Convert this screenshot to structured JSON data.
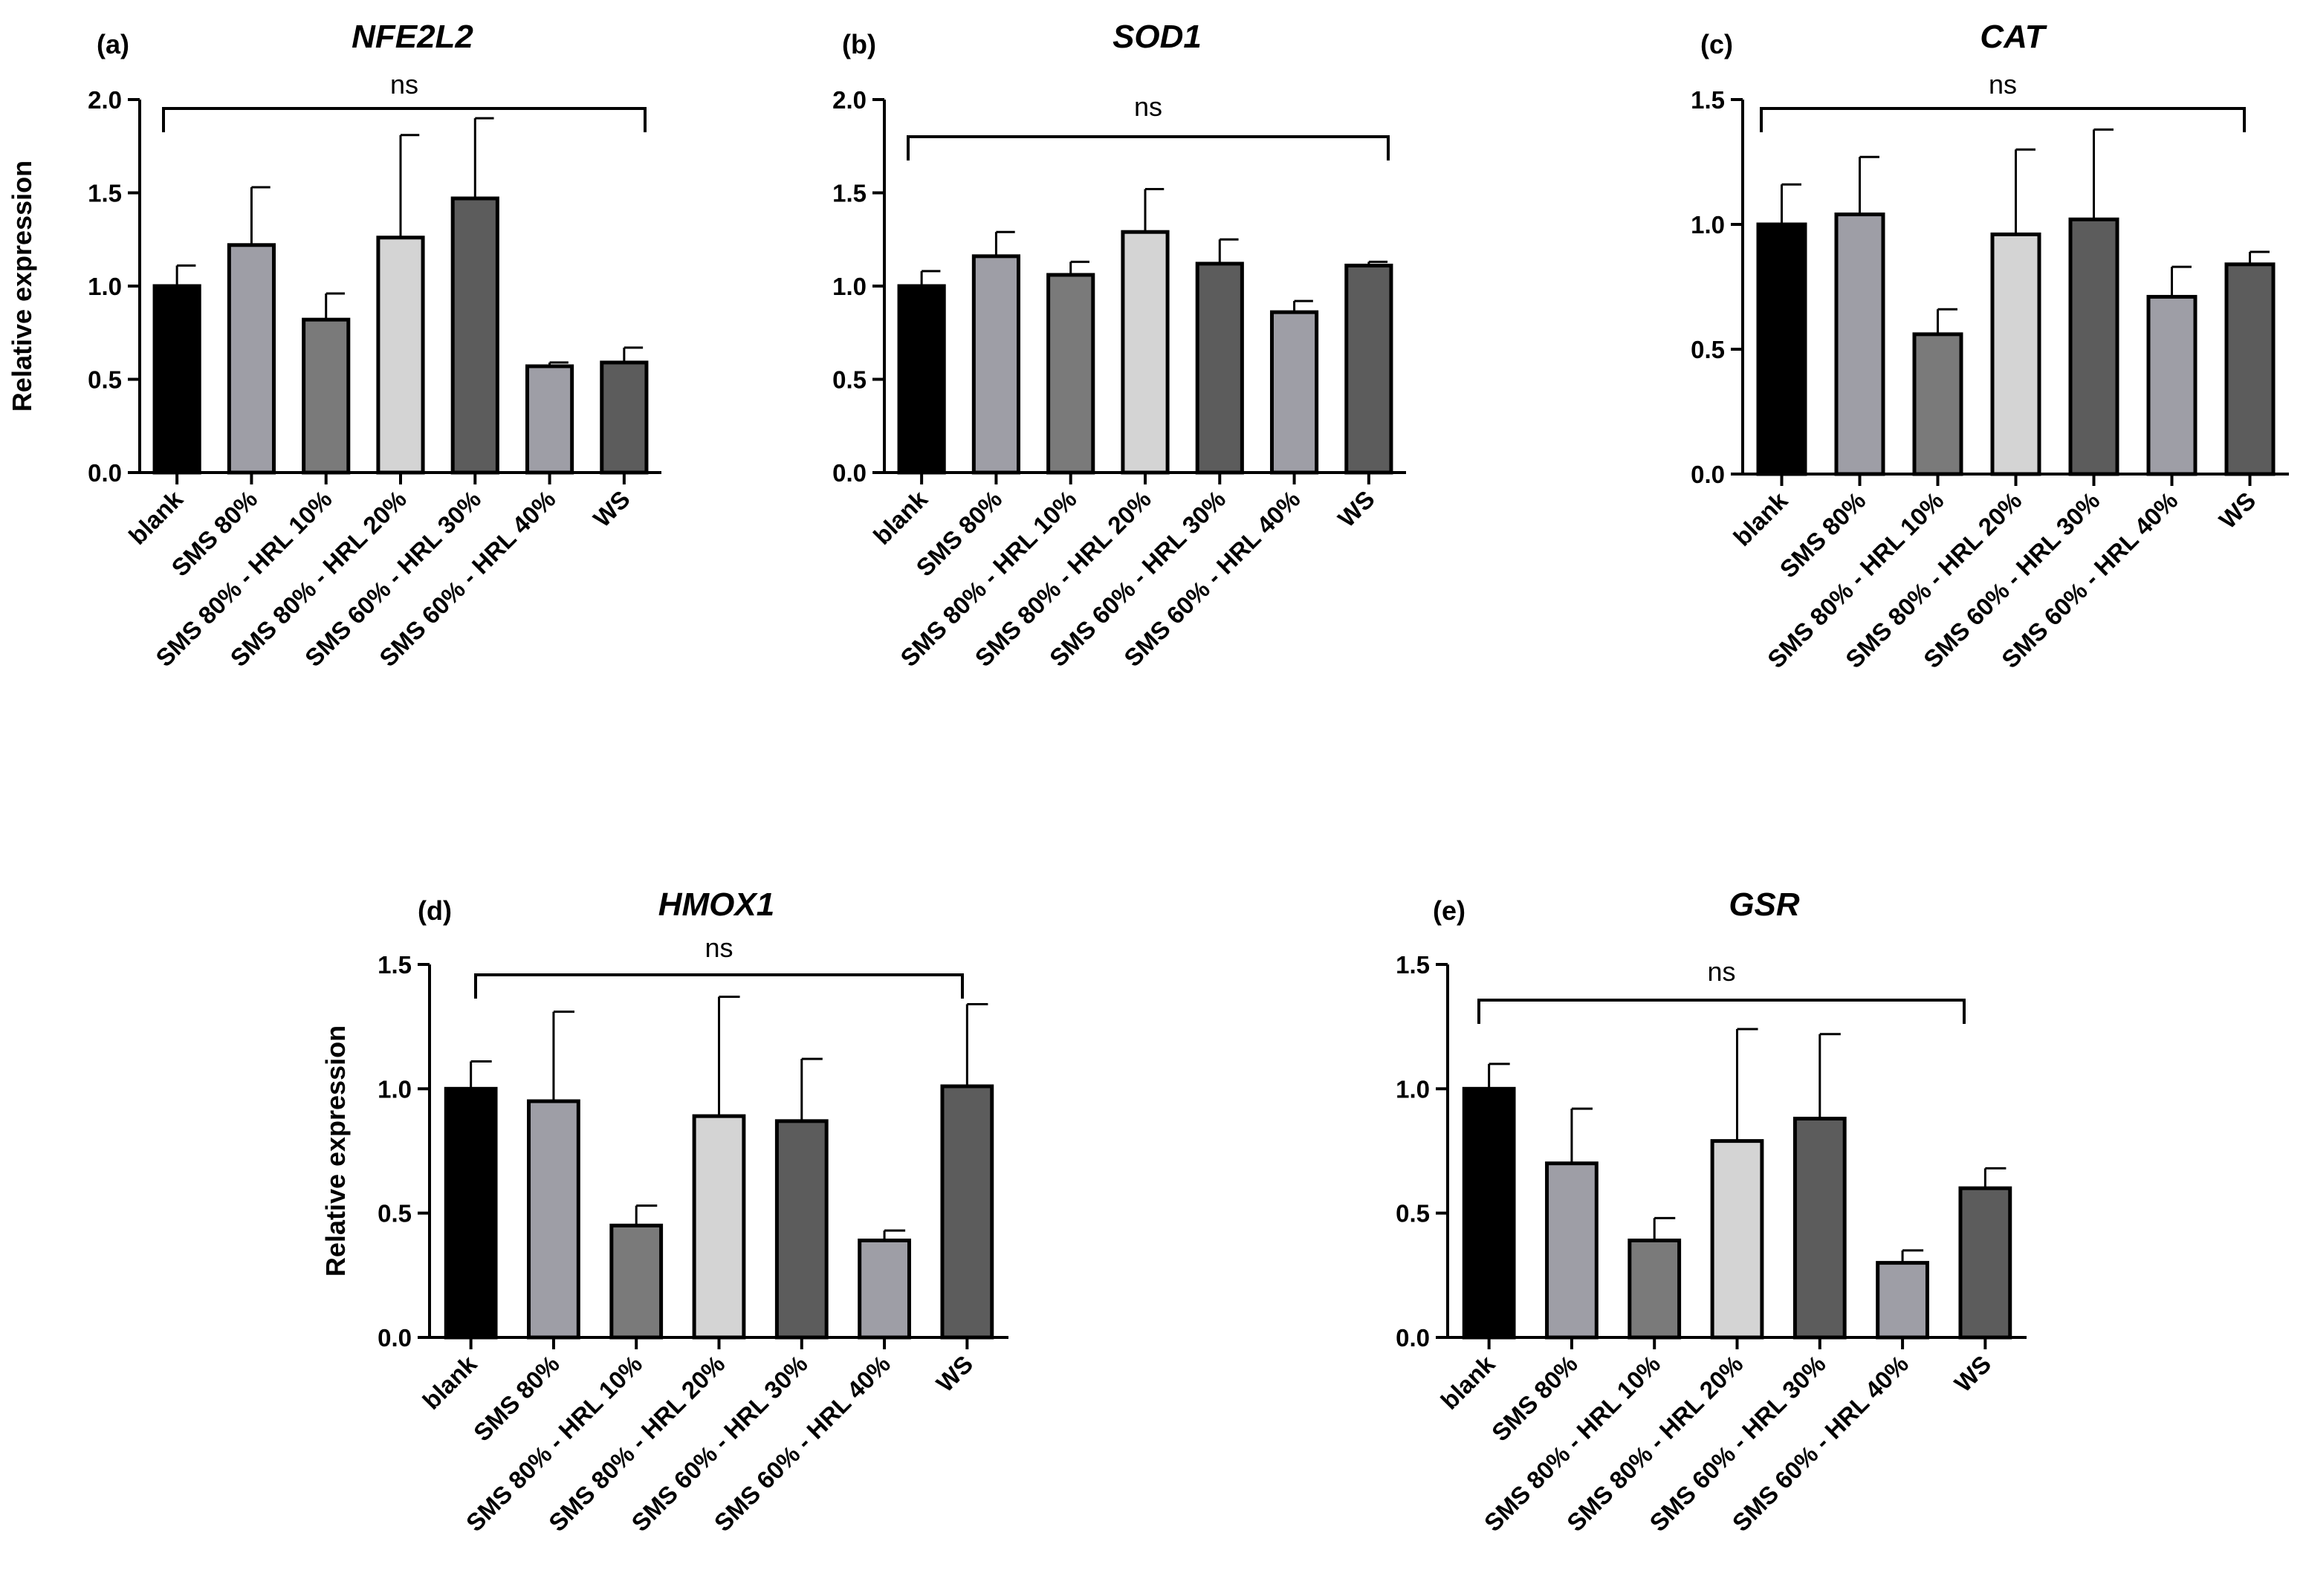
{
  "figure": {
    "ylabel": "Relative expression",
    "ns_label": "ns"
  },
  "chart_data": [
    {
      "type": "bar",
      "panel": "(a)",
      "title": "NFE2L2",
      "ylabel": "Relative expression",
      "ylim": [
        0,
        2.0
      ],
      "yticks": [
        "0.0",
        "0.5",
        "1.0",
        "1.5",
        "2.0"
      ],
      "categories": [
        "blank",
        "SMS 80%",
        "SMS 80% - HRL 10%",
        "SMS 80% - HRL 20%",
        "SMS 60% - HRL 30%",
        "SMS 60% - HRL 40%",
        "WS"
      ],
      "values": [
        1.0,
        1.22,
        0.82,
        1.26,
        1.47,
        0.57,
        0.59
      ],
      "errors": [
        0.11,
        0.31,
        0.14,
        0.55,
        0.43,
        0.02,
        0.08
      ],
      "colors": [
        "#000000",
        "#9e9ea6",
        "#7a7a7a",
        "#d4d4d4",
        "#5c5c5c",
        "#9e9ea6",
        "#5c5c5c"
      ],
      "significance": "ns"
    },
    {
      "type": "bar",
      "panel": "(b)",
      "title": "SOD1",
      "ylabel": "",
      "ylim": [
        0,
        2.0
      ],
      "yticks": [
        "0.0",
        "0.5",
        "1.0",
        "1.5",
        "2.0"
      ],
      "categories": [
        "blank",
        "SMS 80%",
        "SMS 80% - HRL 10%",
        "SMS 80% - HRL 20%",
        "SMS 60% - HRL 30%",
        "SMS 60% - HRL 40%",
        "WS"
      ],
      "values": [
        1.0,
        1.16,
        1.06,
        1.29,
        1.12,
        0.86,
        1.11
      ],
      "errors": [
        0.08,
        0.13,
        0.07,
        0.23,
        0.13,
        0.06,
        0.02
      ],
      "colors": [
        "#000000",
        "#9e9ea6",
        "#7a7a7a",
        "#d4d4d4",
        "#5c5c5c",
        "#9e9ea6",
        "#5c5c5c"
      ],
      "significance": "ns"
    },
    {
      "type": "bar",
      "panel": "(c)",
      "title": "CAT",
      "ylabel": "",
      "ylim": [
        0,
        1.5
      ],
      "yticks": [
        "0.0",
        "0.5",
        "1.0",
        "1.5"
      ],
      "categories": [
        "blank",
        "SMS 80%",
        "SMS 80% - HRL 10%",
        "SMS 80% - HRL 20%",
        "SMS 60% - HRL 30%",
        "SMS 60% - HRL 40%",
        "WS"
      ],
      "values": [
        1.0,
        1.04,
        0.56,
        0.96,
        1.02,
        0.71,
        0.84
      ],
      "errors": [
        0.16,
        0.23,
        0.1,
        0.34,
        0.36,
        0.12,
        0.05
      ],
      "colors": [
        "#000000",
        "#9e9ea6",
        "#7a7a7a",
        "#d4d4d4",
        "#5c5c5c",
        "#9e9ea6",
        "#5c5c5c"
      ],
      "significance": "ns"
    },
    {
      "type": "bar",
      "panel": "(d)",
      "title": "HMOX1",
      "ylabel": "Relative expression",
      "ylim": [
        0,
        1.5
      ],
      "yticks": [
        "0.0",
        "0.5",
        "1.0",
        "1.5"
      ],
      "categories": [
        "blank",
        "SMS 80%",
        "SMS 80% - HRL 10%",
        "SMS 80% - HRL 20%",
        "SMS 60% - HRL 30%",
        "SMS 60% - HRL 40%",
        "WS"
      ],
      "values": [
        1.0,
        0.95,
        0.45,
        0.89,
        0.87,
        0.39,
        1.01
      ],
      "errors": [
        0.11,
        0.36,
        0.08,
        0.48,
        0.25,
        0.04,
        0.33
      ],
      "colors": [
        "#000000",
        "#9e9ea6",
        "#7a7a7a",
        "#d4d4d4",
        "#5c5c5c",
        "#9e9ea6",
        "#5c5c5c"
      ],
      "significance": "ns"
    },
    {
      "type": "bar",
      "panel": "(e)",
      "title": "GSR",
      "ylabel": "",
      "ylim": [
        0,
        1.5
      ],
      "yticks": [
        "0.0",
        "0.5",
        "1.0",
        "1.5"
      ],
      "categories": [
        "blank",
        "SMS 80%",
        "SMS 80% - HRL 10%",
        "SMS 80% - HRL 20%",
        "SMS 60% - HRL 30%",
        "SMS 60% - HRL 40%",
        "WS"
      ],
      "values": [
        1.0,
        0.7,
        0.39,
        0.79,
        0.88,
        0.3,
        0.6
      ],
      "errors": [
        0.1,
        0.22,
        0.09,
        0.45,
        0.34,
        0.05,
        0.08
      ],
      "colors": [
        "#000000",
        "#9e9ea6",
        "#7a7a7a",
        "#d4d4d4",
        "#5c5c5c",
        "#9e9ea6",
        "#5c5c5c"
      ],
      "significance": "ns"
    }
  ]
}
